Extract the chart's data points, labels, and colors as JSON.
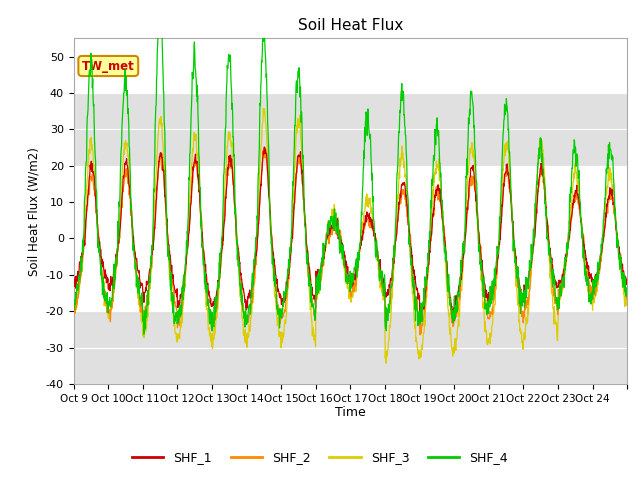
{
  "title": "Soil Heat Flux",
  "ylabel": "Soil Heat Flux (W/m2)",
  "xlabel": "Time",
  "ylim": [
    -40,
    55
  ],
  "yticks": [
    -40,
    -30,
    -20,
    -10,
    0,
    10,
    20,
    30,
    40,
    50
  ],
  "background_color": "#ffffff",
  "plot_bg_color": "#ffffff",
  "series_colors": [
    "#cc0000",
    "#ff8800",
    "#ddcc00",
    "#00cc00"
  ],
  "series_names": [
    "SHF_1",
    "SHF_2",
    "SHF_3",
    "SHF_4"
  ],
  "annotation_text": "TW_met",
  "annotation_color": "#cc0000",
  "annotation_bg": "#ffff99",
  "annotation_border": "#cc8800",
  "xtick_labels": [
    "Oct 9",
    "Oct 10",
    "Oct 11",
    "Oct 12",
    "Oct 13",
    "Oct 14",
    "Oct 15",
    "Oct 16",
    "Oct 17",
    "Oct 18",
    "Oct 19",
    "Oct 20",
    "Oct 21",
    "Oct 22",
    "Oct 23",
    "Oct 24"
  ],
  "n_days": 16,
  "points_per_day": 96,
  "zebra_bands": [
    [
      20,
      40
    ]
  ],
  "zebra_color": "#e0e0e0"
}
